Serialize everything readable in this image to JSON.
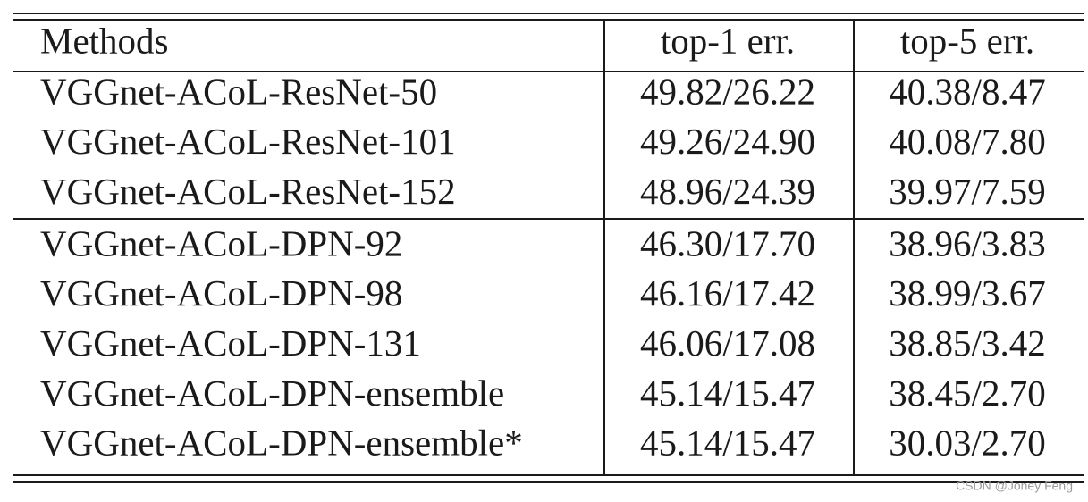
{
  "table": {
    "header": [
      "Methods",
      "top-1 err.",
      "top-5 err."
    ],
    "groups": [
      [
        [
          "VGGnet-ACoL-ResNet-50",
          "49.82/26.22",
          "40.38/8.47"
        ],
        [
          "VGGnet-ACoL-ResNet-101",
          "49.26/24.90",
          "40.08/7.80"
        ],
        [
          "VGGnet-ACoL-ResNet-152",
          "48.96/24.39",
          "39.97/7.59"
        ]
      ],
      [
        [
          "VGGnet-ACoL-DPN-92",
          "46.30/17.70",
          "38.96/3.83"
        ],
        [
          "VGGnet-ACoL-DPN-98",
          "46.16/17.42",
          "38.99/3.67"
        ],
        [
          "VGGnet-ACoL-DPN-131",
          "46.06/17.08",
          "38.85/3.42"
        ],
        [
          "VGGnet-ACoL-DPN-ensemble",
          "45.14/15.47",
          "38.45/2.70"
        ],
        [
          "VGGnet-ACoL-DPN-ensemble*",
          "45.14/15.47",
          "30.03/2.70"
        ]
      ]
    ]
  },
  "watermark": "CSDN @Joney Feng"
}
